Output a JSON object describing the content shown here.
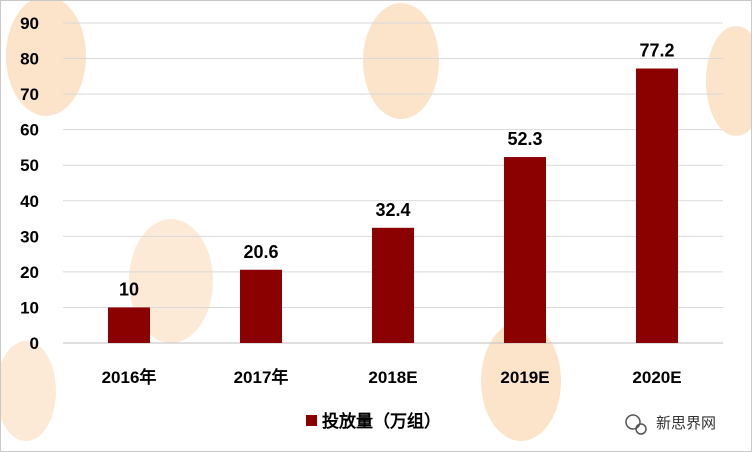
{
  "chart_data": {
    "type": "bar",
    "categories": [
      "2016年",
      "2017年",
      "2018E",
      "2019E",
      "2020E"
    ],
    "series": [
      {
        "name": "投放量（万组）",
        "values": [
          10,
          20.6,
          32.4,
          52.3,
          77.2
        ]
      }
    ],
    "data_labels": [
      "10",
      "20.6",
      "32.4",
      "52.3",
      "77.2"
    ],
    "ylim": [
      0,
      90
    ],
    "yticks": [
      0,
      10,
      20,
      30,
      40,
      50,
      60,
      70,
      80,
      90
    ],
    "grid": true,
    "legend_position": "bottom",
    "colors": {
      "bar": "#8b0000",
      "grid": "#d9d9d9",
      "axis": "#bfbfbf"
    }
  },
  "watermark": {
    "text": "新思界网",
    "icon": "wechat-icon"
  }
}
